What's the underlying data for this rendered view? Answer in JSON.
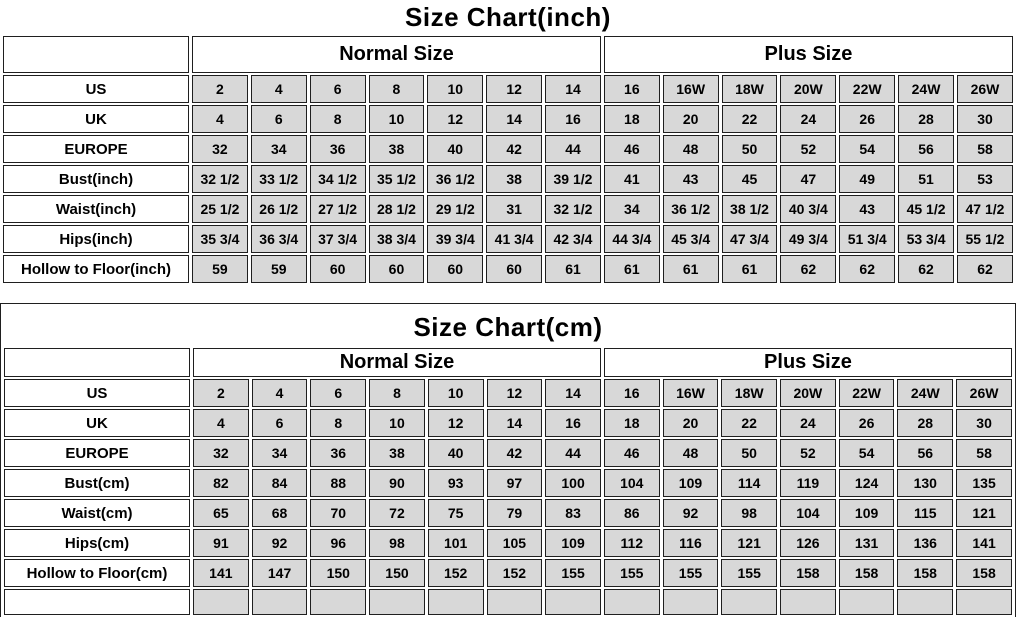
{
  "colors": {
    "background": "#ffffff",
    "cell_fill": "#d8d8d8",
    "border": "#1f1f1f",
    "text": "#000000"
  },
  "chart_data": [
    {
      "type": "table",
      "title": "Size Chart(inch)",
      "column_groups": [
        "Normal Size",
        "Plus Size"
      ],
      "columns_per_group": 7,
      "size_columns": [
        "2",
        "4",
        "6",
        "8",
        "10",
        "12",
        "14",
        "16",
        "16W",
        "18W",
        "20W",
        "22W",
        "24W",
        "26W"
      ],
      "rows": [
        {
          "label": "US",
          "values": [
            "2",
            "4",
            "6",
            "8",
            "10",
            "12",
            "14",
            "16",
            "16W",
            "18W",
            "20W",
            "22W",
            "24W",
            "26W"
          ]
        },
        {
          "label": "UK",
          "values": [
            "4",
            "6",
            "8",
            "10",
            "12",
            "14",
            "16",
            "18",
            "20",
            "22",
            "24",
            "26",
            "28",
            "30"
          ]
        },
        {
          "label": "EUROPE",
          "values": [
            "32",
            "34",
            "36",
            "38",
            "40",
            "42",
            "44",
            "46",
            "48",
            "50",
            "52",
            "54",
            "56",
            "58"
          ]
        },
        {
          "label": "Bust(inch)",
          "values": [
            "32 1/2",
            "33 1/2",
            "34 1/2",
            "35 1/2",
            "36 1/2",
            "38",
            "39 1/2",
            "41",
            "43",
            "45",
            "47",
            "49",
            "51",
            "53"
          ]
        },
        {
          "label": "Waist(inch)",
          "values": [
            "25 1/2",
            "26 1/2",
            "27 1/2",
            "28 1/2",
            "29 1/2",
            "31",
            "32 1/2",
            "34",
            "36 1/2",
            "38 1/2",
            "40 3/4",
            "43",
            "45 1/2",
            "47 1/2"
          ]
        },
        {
          "label": "Hips(inch)",
          "values": [
            "35 3/4",
            "36 3/4",
            "37 3/4",
            "38 3/4",
            "39 3/4",
            "41 3/4",
            "42 3/4",
            "44 3/4",
            "45 3/4",
            "47 3/4",
            "49 3/4",
            "51 3/4",
            "53 3/4",
            "55 1/2"
          ]
        },
        {
          "label": "Hollow to Floor(inch)",
          "values": [
            "59",
            "59",
            "60",
            "60",
            "60",
            "60",
            "61",
            "61",
            "61",
            "61",
            "62",
            "62",
            "62",
            "62"
          ]
        }
      ],
      "cutoff_row": false
    },
    {
      "type": "table",
      "title": "Size Chart(cm)",
      "column_groups": [
        "Normal Size",
        "Plus Size"
      ],
      "columns_per_group": 7,
      "size_columns": [
        "2",
        "4",
        "6",
        "8",
        "10",
        "12",
        "14",
        "16",
        "16W",
        "18W",
        "20W",
        "22W",
        "24W",
        "26W"
      ],
      "rows": [
        {
          "label": "US",
          "values": [
            "2",
            "4",
            "6",
            "8",
            "10",
            "12",
            "14",
            "16",
            "16W",
            "18W",
            "20W",
            "22W",
            "24W",
            "26W"
          ]
        },
        {
          "label": "UK",
          "values": [
            "4",
            "6",
            "8",
            "10",
            "12",
            "14",
            "16",
            "18",
            "20",
            "22",
            "24",
            "26",
            "28",
            "30"
          ]
        },
        {
          "label": "EUROPE",
          "values": [
            "32",
            "34",
            "36",
            "38",
            "40",
            "42",
            "44",
            "46",
            "48",
            "50",
            "52",
            "54",
            "56",
            "58"
          ]
        },
        {
          "label": "Bust(cm)",
          "values": [
            "82",
            "84",
            "88",
            "90",
            "93",
            "97",
            "100",
            "104",
            "109",
            "114",
            "119",
            "124",
            "130",
            "135"
          ]
        },
        {
          "label": "Waist(cm)",
          "values": [
            "65",
            "68",
            "70",
            "72",
            "75",
            "79",
            "83",
            "86",
            "92",
            "98",
            "104",
            "109",
            "115",
            "121"
          ]
        },
        {
          "label": "Hips(cm)",
          "values": [
            "91",
            "92",
            "96",
            "98",
            "101",
            "105",
            "109",
            "112",
            "116",
            "121",
            "126",
            "131",
            "136",
            "141"
          ]
        },
        {
          "label": "Hollow to Floor(cm)",
          "values": [
            "141",
            "147",
            "150",
            "150",
            "152",
            "152",
            "155",
            "155",
            "155",
            "155",
            "158",
            "158",
            "158",
            "158"
          ]
        }
      ],
      "cutoff_row": true
    }
  ]
}
